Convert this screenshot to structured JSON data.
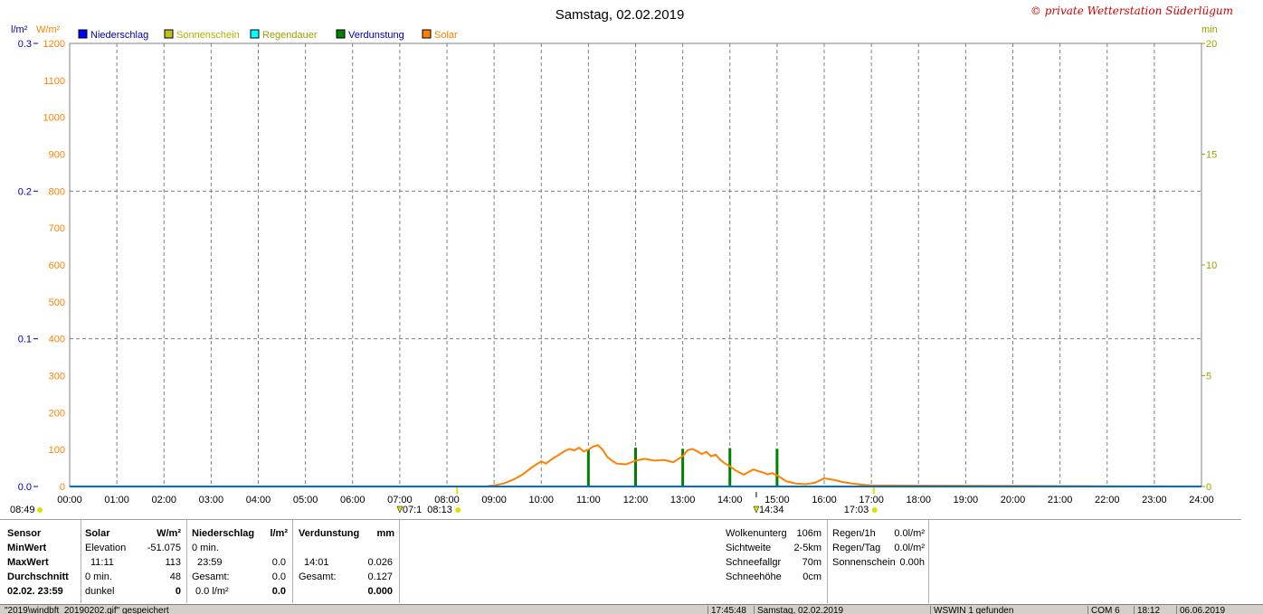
{
  "chart_data": {
    "type": "line",
    "title": "Samstag, 02.02.2019",
    "copyright": "© private Wetterstation Süderlügum",
    "left_units": [
      "l/m²",
      "W/m²"
    ],
    "right_unit": "min",
    "legend": [
      {
        "name": "Niederschlag",
        "color": "#0000ff",
        "text_color": "#0000aa"
      },
      {
        "name": "Sonnenschein",
        "color": "#c0c020",
        "text_color": "#b0b000"
      },
      {
        "name": "Regendauer",
        "color": "#00ffff",
        "text_color": "#a0a000"
      },
      {
        "name": "Verdunstung",
        "color": "#008000",
        "text_color": "#0000aa"
      },
      {
        "name": "Solar",
        "color": "#ff8000",
        "text_color": "#ff8000"
      }
    ],
    "y_left_rain": {
      "ticks": [
        "0.0",
        "0.1",
        "0.2",
        "0.3"
      ],
      "ylim": [
        0,
        0.3
      ]
    },
    "y_left_solar": {
      "ticks": [
        "0",
        "100",
        "200",
        "300",
        "400",
        "500",
        "600",
        "700",
        "800",
        "900",
        "1000",
        "1100",
        "1200"
      ],
      "ylim": [
        0,
        1200
      ]
    },
    "y_right_min": {
      "ticks": [
        "0",
        "5",
        "10",
        "15",
        "20"
      ],
      "ylim": [
        0,
        20
      ]
    },
    "x_ticks": [
      "00:00",
      "01:00",
      "02:00",
      "03:00",
      "04:00",
      "05:00",
      "06:00",
      "07:00",
      "08:00",
      "09:00",
      "10:00",
      "11:00",
      "12:00",
      "13:00",
      "14:00",
      "15:00",
      "16:00",
      "17:00",
      "18:00",
      "19:00",
      "20:00",
      "21:00",
      "22:00",
      "23:00",
      "24:00"
    ],
    "xlim": [
      0,
      24
    ],
    "sunrise_label": "08:13",
    "sunset_label": "17:03",
    "civil_dawn_label": "07:1",
    "noon_mark_label": "14:34",
    "daylength_label": "08:49",
    "solar": {
      "name": "Solar",
      "x": [
        0,
        8.8,
        9.0,
        9.2,
        9.4,
        9.6,
        9.8,
        10.0,
        10.1,
        10.2,
        10.3,
        10.4,
        10.5,
        10.6,
        10.7,
        10.8,
        10.9,
        11.0,
        11.1,
        11.2,
        11.3,
        11.4,
        11.5,
        11.6,
        11.8,
        12.0,
        12.2,
        12.4,
        12.6,
        12.8,
        13.0,
        13.1,
        13.2,
        13.3,
        13.4,
        13.5,
        13.6,
        13.7,
        13.8,
        13.9,
        14.0,
        14.1,
        14.2,
        14.3,
        14.4,
        14.5,
        14.6,
        14.7,
        14.8,
        14.9,
        15.0,
        15.1,
        15.2,
        15.4,
        15.6,
        15.8,
        16.0,
        16.2,
        16.4,
        16.6,
        16.8,
        17.0,
        24
      ],
      "values": [
        0,
        0,
        3,
        8,
        18,
        32,
        52,
        68,
        62,
        72,
        80,
        88,
        96,
        102,
        98,
        105,
        95,
        100,
        108,
        112,
        100,
        80,
        70,
        62,
        60,
        70,
        75,
        70,
        72,
        66,
        82,
        98,
        102,
        96,
        88,
        94,
        82,
        86,
        72,
        62,
        55,
        45,
        38,
        32,
        40,
        46,
        42,
        38,
        33,
        36,
        30,
        22,
        14,
        8,
        6,
        10,
        22,
        18,
        12,
        8,
        5,
        3,
        0
      ]
    },
    "verdunstung_bars": {
      "name": "Verdunstung",
      "x": [
        11.0,
        12.0,
        13.0,
        14.0,
        15.0
      ],
      "heights_w_axis": [
        100,
        105,
        102,
        104,
        102
      ]
    },
    "niederschlag": {
      "name": "Niederschlag",
      "x": [
        0,
        24
      ],
      "values": [
        0,
        0
      ]
    }
  },
  "stats": {
    "sensor": {
      "header": "Sensor",
      "min": "MinWert",
      "max": "MaxWert",
      "avg": "Durchschnitt",
      "date": "02.02. 23:59"
    },
    "solar": {
      "header": "Solar",
      "unit": "W/m²",
      "min_label": "Elevation",
      "min_value": "-51.075",
      "max_time": "11:11",
      "max_value": "113",
      "avg_label": "0 min.",
      "avg_value": "48",
      "sum_label": "dunkel",
      "sum_value": "0"
    },
    "rain": {
      "header": "Niederschlag",
      "unit": "l/m²",
      "min_label": "0 min.",
      "max_time": "23:59",
      "max_value": "0.0",
      "avg_label": "Gesamt:",
      "avg_value": "0.0",
      "sum_label": "0.0 l/m²",
      "sum_value": "0.0"
    },
    "evap": {
      "header": "Verdunstung",
      "unit": "mm",
      "max_time": "14:01",
      "max_value": "0.026",
      "avg_label": "Gesamt:",
      "avg_value": "0.127",
      "sum_value": "0.000"
    },
    "weather": {
      "left": [
        {
          "label": "Wolkenunterg",
          "value": "106m"
        },
        {
          "label": "Sichtweite",
          "value": "2-5km"
        },
        {
          "label": "Schneefallgr",
          "value": "70m"
        },
        {
          "label": "Schneehöhe",
          "value": "0cm"
        }
      ],
      "right": [
        {
          "label": "Regen/1h",
          "value": "0.0l/m²"
        },
        {
          "label": "Regen/Tag",
          "value": "0.0l/m²"
        },
        {
          "label": "Sonnenschein",
          "value": "0.00h"
        }
      ]
    }
  },
  "statusbar": {
    "file": "\"2019\\windbft_20190202.gif\" gespeichert",
    "time": "17:45:48",
    "date": "Samstag, 02.02.2019",
    "status": "WSWIN 1 gefunden",
    "port": "COM 6",
    "clock": "18:12",
    "date2": "06.06.2019"
  }
}
